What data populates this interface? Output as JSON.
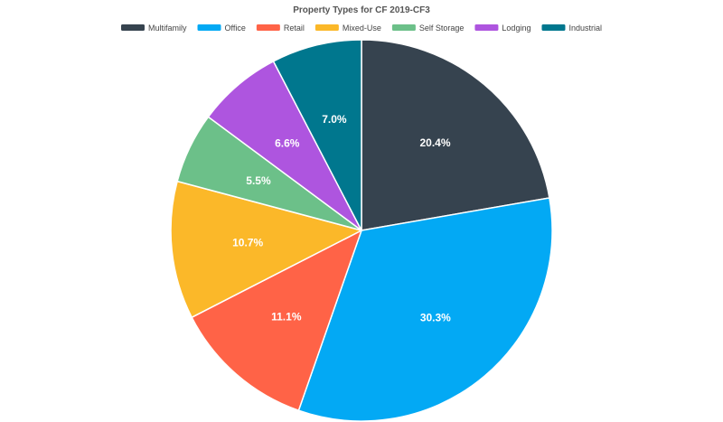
{
  "chart_data": {
    "type": "pie",
    "title": "Property Types for CF 2019-CF3",
    "legend_position": "top",
    "start_angle_deg": 0,
    "direction": "clockwise",
    "slices": [
      {
        "name": "Multifamily",
        "value": 20.4,
        "label": "20.4%",
        "color": "#36434f"
      },
      {
        "name": "Office",
        "value": 30.3,
        "label": "30.3%",
        "color": "#03a9f4"
      },
      {
        "name": "Retail",
        "value": 11.1,
        "label": "11.1%",
        "color": "#ff6347"
      },
      {
        "name": "Mixed-Use",
        "value": 10.7,
        "label": "10.7%",
        "color": "#fbb829"
      },
      {
        "name": "Self Storage",
        "value": 5.5,
        "label": "5.5%",
        "color": "#6cc089"
      },
      {
        "name": "Lodging",
        "value": 6.6,
        "label": "6.6%",
        "color": "#ae55df"
      },
      {
        "name": "Industrial",
        "value": 7.0,
        "label": "7.0%",
        "color": "#00778e"
      }
    ]
  }
}
